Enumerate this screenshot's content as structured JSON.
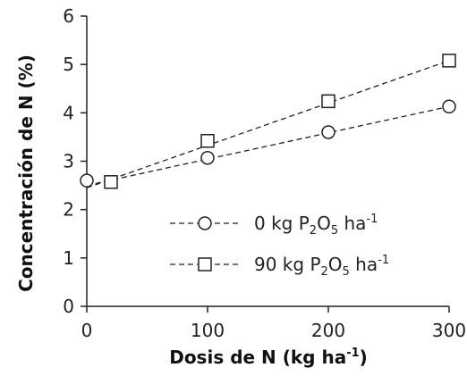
{
  "chart_data": {
    "type": "scatter",
    "xlabel": "Dosis de N (kg ha",
    "xlabel_sup": "-1",
    "xlabel_close": ")",
    "ylabel": "Concentración de N (%)",
    "xlim": [
      0,
      300
    ],
    "ylim": [
      0,
      6
    ],
    "xticks": [
      0,
      100,
      200,
      300
    ],
    "yticks": [
      0,
      1,
      2,
      3,
      4,
      5,
      6
    ],
    "grid": false,
    "legend_position": "lower-right",
    "series": [
      {
        "name": "0 kg P2O5 ha-1",
        "label": {
          "pre": "0 kg  P",
          "sub1": "2",
          "mid": "O",
          "sub2": "5",
          "post": " ha",
          "sup": "-1"
        },
        "marker": "circle",
        "points": [
          [
            0,
            2.6
          ],
          [
            100,
            3.07
          ],
          [
            200,
            3.6
          ],
          [
            300,
            4.13
          ]
        ],
        "trend": [
          [
            0,
            2.5
          ],
          [
            300,
            4.13
          ]
        ]
      },
      {
        "name": "90 kg P2O5 ha-1",
        "label": {
          "pre": "90 kg  P",
          "sub1": "2",
          "mid": "O",
          "sub2": "5",
          "post": " ha",
          "sup": "-1"
        },
        "marker": "square",
        "points": [
          [
            20,
            2.57
          ],
          [
            100,
            3.42
          ],
          [
            200,
            4.24
          ],
          [
            300,
            5.08
          ]
        ],
        "trend": [
          [
            0,
            2.45
          ],
          [
            300,
            5.08
          ]
        ]
      }
    ],
    "colors": {
      "ink": "#222222",
      "marker_fill": "#ffffff"
    }
  }
}
